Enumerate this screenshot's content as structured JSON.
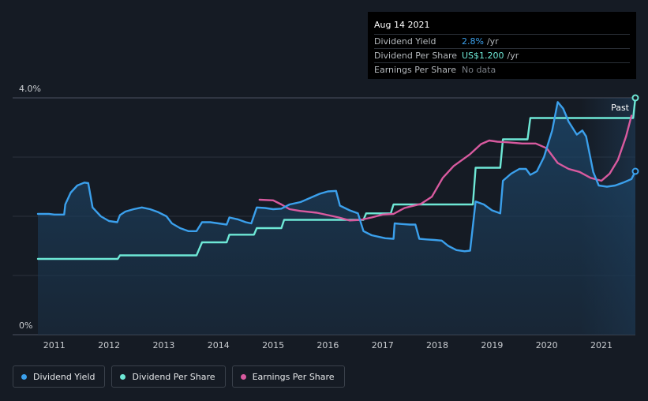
{
  "tooltip": {
    "date": "Aug 14 2021",
    "rows": [
      {
        "label": "Dividend Yield",
        "value": "2.8%",
        "unit": "/yr",
        "color": "#3ba0ec"
      },
      {
        "label": "Dividend Per Share",
        "value": "US$1.200",
        "unit": "/yr",
        "color": "#6ee8d6"
      },
      {
        "label": "Earnings Per Share",
        "value": "No data",
        "unit": "",
        "color": "#7a7f86"
      }
    ]
  },
  "past_label": "Past",
  "legend": [
    {
      "label": "Dividend Yield",
      "color": "#3ba0ec"
    },
    {
      "label": "Dividend Per Share",
      "color": "#6ee8d6"
    },
    {
      "label": "Earnings Per Share",
      "color": "#d85a9f"
    }
  ],
  "chart_data": {
    "type": "line",
    "x_ticks": [
      "2011",
      "2012",
      "2013",
      "2014",
      "2015",
      "2016",
      "2017",
      "2018",
      "2019",
      "2020",
      "2021"
    ],
    "y_ticks": [
      "0%",
      "4.0%"
    ],
    "ylim": [
      0,
      4.0
    ],
    "xlim": [
      2010.7,
      2021.62
    ],
    "grid": true,
    "series": [
      {
        "name": "Dividend Yield",
        "color": "#3ba0ec",
        "points": [
          [
            2010.7,
            2.04
          ],
          [
            2010.9,
            2.04
          ],
          [
            2011.0,
            2.03
          ],
          [
            2011.18,
            2.03
          ],
          [
            2011.2,
            2.2
          ],
          [
            2011.3,
            2.4
          ],
          [
            2011.42,
            2.52
          ],
          [
            2011.55,
            2.57
          ],
          [
            2011.62,
            2.56
          ],
          [
            2011.7,
            2.15
          ],
          [
            2011.85,
            2.0
          ],
          [
            2012.0,
            1.92
          ],
          [
            2012.15,
            1.9
          ],
          [
            2012.2,
            2.02
          ],
          [
            2012.3,
            2.08
          ],
          [
            2012.45,
            2.12
          ],
          [
            2012.6,
            2.15
          ],
          [
            2012.75,
            2.12
          ],
          [
            2012.9,
            2.07
          ],
          [
            2013.05,
            2.0
          ],
          [
            2013.15,
            1.88
          ],
          [
            2013.3,
            1.8
          ],
          [
            2013.45,
            1.75
          ],
          [
            2013.6,
            1.75
          ],
          [
            2013.7,
            1.9
          ],
          [
            2013.85,
            1.9
          ],
          [
            2014.0,
            1.88
          ],
          [
            2014.15,
            1.86
          ],
          [
            2014.2,
            1.98
          ],
          [
            2014.35,
            1.95
          ],
          [
            2014.5,
            1.9
          ],
          [
            2014.6,
            1.88
          ],
          [
            2014.7,
            2.15
          ],
          [
            2014.85,
            2.14
          ],
          [
            2015.0,
            2.12
          ],
          [
            2015.15,
            2.13
          ],
          [
            2015.3,
            2.2
          ],
          [
            2015.5,
            2.24
          ],
          [
            2015.7,
            2.32
          ],
          [
            2015.85,
            2.38
          ],
          [
            2016.0,
            2.42
          ],
          [
            2016.15,
            2.43
          ],
          [
            2016.22,
            2.18
          ],
          [
            2016.4,
            2.1
          ],
          [
            2016.55,
            2.05
          ],
          [
            2016.65,
            1.75
          ],
          [
            2016.8,
            1.68
          ],
          [
            2016.95,
            1.65
          ],
          [
            2017.05,
            1.63
          ],
          [
            2017.2,
            1.62
          ],
          [
            2017.22,
            1.88
          ],
          [
            2017.35,
            1.87
          ],
          [
            2017.5,
            1.86
          ],
          [
            2017.6,
            1.86
          ],
          [
            2017.67,
            1.62
          ],
          [
            2017.8,
            1.61
          ],
          [
            2017.95,
            1.6
          ],
          [
            2018.08,
            1.59
          ],
          [
            2018.2,
            1.5
          ],
          [
            2018.35,
            1.43
          ],
          [
            2018.5,
            1.41
          ],
          [
            2018.6,
            1.42
          ],
          [
            2018.7,
            2.25
          ],
          [
            2018.85,
            2.2
          ],
          [
            2019.0,
            2.1
          ],
          [
            2019.15,
            2.05
          ],
          [
            2019.2,
            2.6
          ],
          [
            2019.35,
            2.72
          ],
          [
            2019.5,
            2.8
          ],
          [
            2019.62,
            2.8
          ],
          [
            2019.7,
            2.7
          ],
          [
            2019.82,
            2.76
          ],
          [
            2019.95,
            3.0
          ],
          [
            2020.1,
            3.45
          ],
          [
            2020.2,
            3.93
          ],
          [
            2020.3,
            3.82
          ],
          [
            2020.4,
            3.6
          ],
          [
            2020.55,
            3.38
          ],
          [
            2020.65,
            3.45
          ],
          [
            2020.72,
            3.35
          ],
          [
            2020.85,
            2.75
          ],
          [
            2020.95,
            2.52
          ],
          [
            2021.1,
            2.5
          ],
          [
            2021.25,
            2.52
          ],
          [
            2021.4,
            2.57
          ],
          [
            2021.55,
            2.63
          ],
          [
            2021.62,
            2.76
          ]
        ]
      },
      {
        "name": "Dividend Per Share",
        "color": "#6ee8d6",
        "points": [
          [
            2010.7,
            1.28
          ],
          [
            2012.16,
            1.28
          ],
          [
            2012.2,
            1.34
          ],
          [
            2013.6,
            1.34
          ],
          [
            2013.7,
            1.56
          ],
          [
            2014.15,
            1.56
          ],
          [
            2014.2,
            1.69
          ],
          [
            2014.65,
            1.69
          ],
          [
            2014.7,
            1.8
          ],
          [
            2015.15,
            1.8
          ],
          [
            2015.2,
            1.94
          ],
          [
            2016.65,
            1.94
          ],
          [
            2016.7,
            2.05
          ],
          [
            2017.15,
            2.05
          ],
          [
            2017.2,
            2.2
          ],
          [
            2018.65,
            2.2
          ],
          [
            2018.7,
            2.82
          ],
          [
            2019.15,
            2.82
          ],
          [
            2019.2,
            3.3
          ],
          [
            2019.65,
            3.3
          ],
          [
            2019.7,
            3.66
          ],
          [
            2021.58,
            3.66
          ],
          [
            2021.62,
            4.0
          ]
        ]
      },
      {
        "name": "Earnings Per Share",
        "color": "#d85a9f",
        "points": [
          [
            2014.75,
            2.28
          ],
          [
            2015.0,
            2.27
          ],
          [
            2015.15,
            2.2
          ],
          [
            2015.3,
            2.12
          ],
          [
            2015.5,
            2.09
          ],
          [
            2015.8,
            2.06
          ],
          [
            2016.0,
            2.02
          ],
          [
            2016.2,
            1.98
          ],
          [
            2016.4,
            1.93
          ],
          [
            2016.6,
            1.94
          ],
          [
            2016.8,
            1.98
          ],
          [
            2017.0,
            2.03
          ],
          [
            2017.2,
            2.04
          ],
          [
            2017.4,
            2.14
          ],
          [
            2017.7,
            2.21
          ],
          [
            2017.9,
            2.33
          ],
          [
            2018.1,
            2.65
          ],
          [
            2018.3,
            2.85
          ],
          [
            2018.6,
            3.05
          ],
          [
            2018.8,
            3.22
          ],
          [
            2018.95,
            3.28
          ],
          [
            2019.1,
            3.26
          ],
          [
            2019.3,
            3.25
          ],
          [
            2019.55,
            3.23
          ],
          [
            2019.8,
            3.23
          ],
          [
            2020.0,
            3.15
          ],
          [
            2020.2,
            2.9
          ],
          [
            2020.4,
            2.8
          ],
          [
            2020.6,
            2.75
          ],
          [
            2020.8,
            2.65
          ],
          [
            2021.0,
            2.6
          ],
          [
            2021.15,
            2.72
          ],
          [
            2021.3,
            2.95
          ],
          [
            2021.45,
            3.35
          ],
          [
            2021.55,
            3.7
          ]
        ]
      }
    ]
  }
}
